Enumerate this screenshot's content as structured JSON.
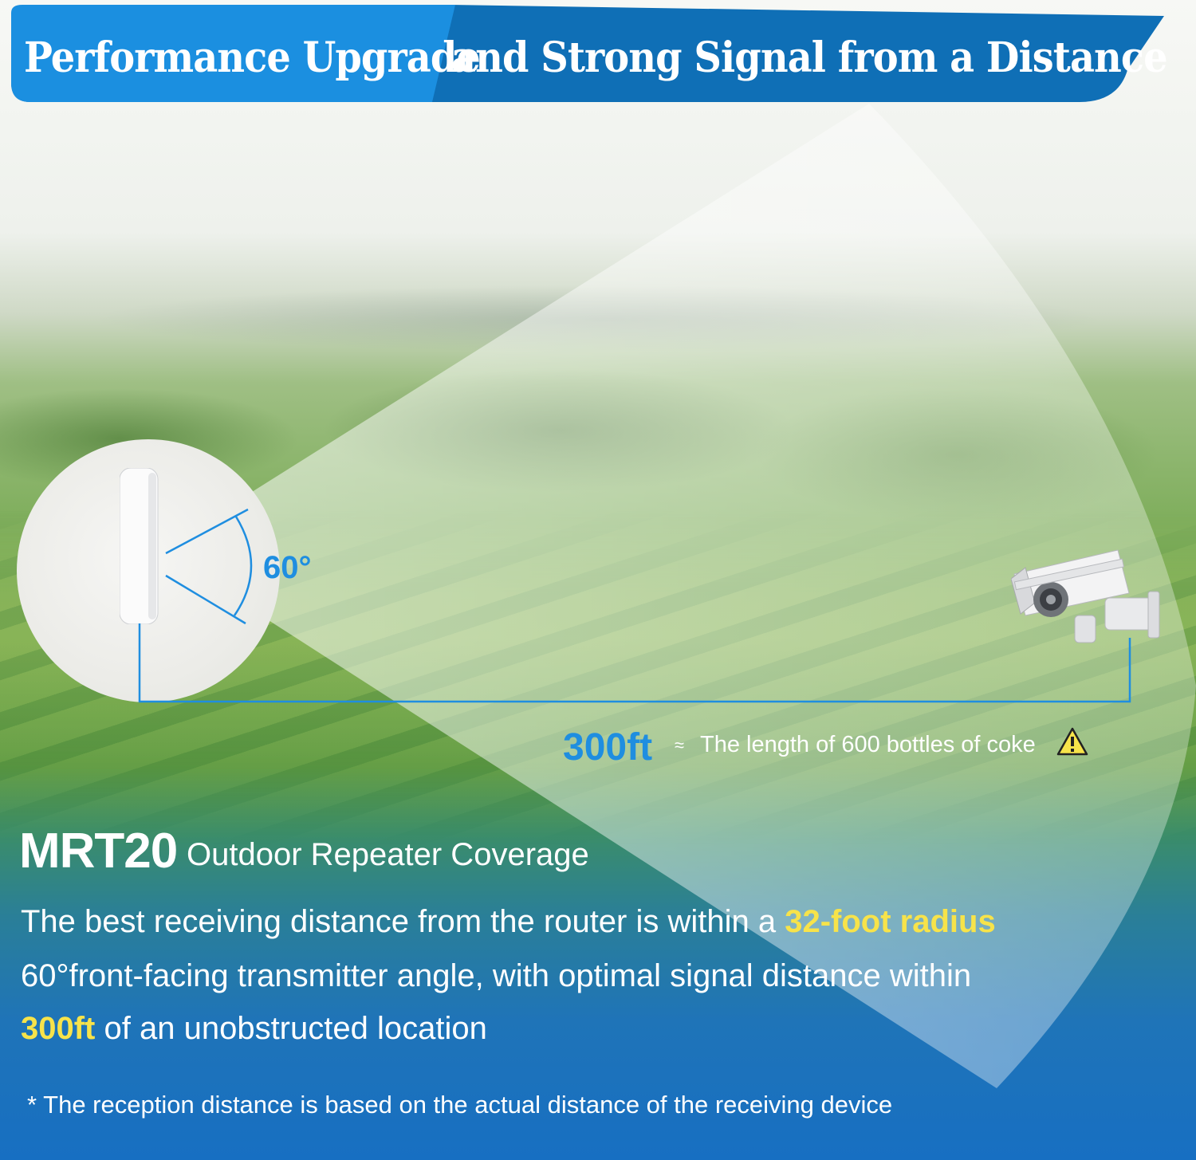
{
  "header": {
    "title_left": "Performance Upgrade",
    "title_right": "and Strong Signal from a Distance"
  },
  "diagram": {
    "angle_label": "60°",
    "distance_value": "300ft",
    "approx_symbol": "≈",
    "distance_comparison": "The length of 600 bottles of coke",
    "warning_icon": "warning-triangle-icon"
  },
  "product": {
    "model": "MRT20",
    "subtitle": "Outdoor Repeater Coverage"
  },
  "body": {
    "line1_prefix": "The best receiving distance from the router is within a ",
    "line1_highlight": "32-foot radius",
    "line2": "60°front-facing transmitter angle, with optimal signal distance within",
    "line3_highlight": "300ft",
    "line3_suffix": " of an unobstructed location"
  },
  "footnote": {
    "marker": "*",
    "text": "The reception distance is based on the actual distance of the receiving device"
  },
  "colors": {
    "header_blue": "#168bd8",
    "header_dark": "#0f6fb6",
    "accent_blue": "#1f8ee0",
    "highlight_yellow": "#f7e34a"
  }
}
